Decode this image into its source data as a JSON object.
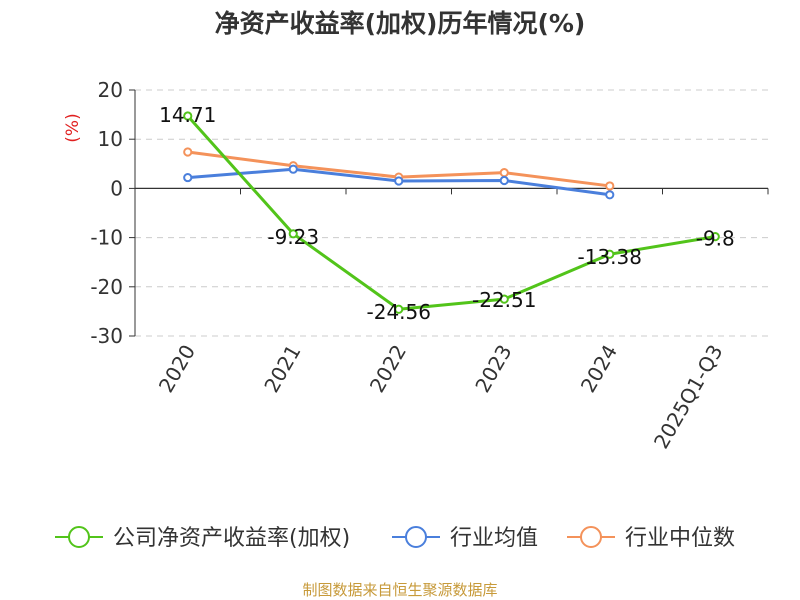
{
  "title": "净资产收益率(加权)历年情况(%)",
  "source": "制图数据来自恒生聚源数据库",
  "chart_data": {
    "type": "line",
    "title": "净资产收益率(加权)历年情况(%)",
    "ylabel": "(%)",
    "categories": [
      "2020",
      "2021",
      "2022",
      "2023",
      "2024",
      "2025Q1-Q3"
    ],
    "ylim": [
      -30,
      20
    ],
    "yticks": [
      20,
      10,
      0,
      -10,
      -20,
      -30
    ],
    "grid": true,
    "legend": "bottom",
    "series": [
      {
        "name": "公司净资产收益率(加权)",
        "color": "#52c41a",
        "values": [
          14.71,
          -9.23,
          -24.56,
          -22.51,
          -13.38,
          -9.8
        ],
        "labels": [
          "14.71",
          "-9.23",
          "-24.56",
          "-22.51",
          "-13.38",
          "-9.8"
        ]
      },
      {
        "name": "行业均值",
        "color": "#4a7fdc",
        "values": [
          2.2,
          3.9,
          1.5,
          1.6,
          -1.3,
          null
        ]
      },
      {
        "name": "行业中位数",
        "color": "#f4925a",
        "values": [
          7.4,
          4.6,
          2.3,
          3.2,
          0.5,
          null
        ]
      }
    ]
  }
}
